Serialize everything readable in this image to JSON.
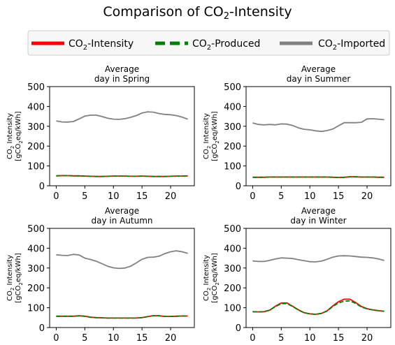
{
  "figure": {
    "title_prefix": "Comparison of CO",
    "title_sub": "2",
    "title_suffix": "-Intensity"
  },
  "legend": {
    "placement": "top-center",
    "items": [
      {
        "name": "CO2-Intensity",
        "prefix": "CO",
        "sub": "2",
        "suffix": "-Intensity",
        "color": "#ff0000",
        "style": "solid"
      },
      {
        "name": "CO2-Produced",
        "prefix": "CO",
        "sub": "2",
        "suffix": "-Produced",
        "color": "#008000",
        "style": "dashed"
      },
      {
        "name": "CO2-Imported",
        "prefix": "CO",
        "sub": "2",
        "suffix": "-Imported",
        "color": "#808080",
        "style": "solid"
      }
    ]
  },
  "axis_common": {
    "ylabel_line1_prefix": "CO",
    "ylabel_line1_sub": "2",
    "ylabel_line1_suffix": " Intensity",
    "ylabel_line2_prefix": "[gCO",
    "ylabel_line2_sub": "2",
    "ylabel_line2_suffix": "eq/kWh]",
    "yticks": [
      0,
      100,
      200,
      300,
      400,
      500
    ],
    "xticks": [
      0,
      5,
      10,
      15,
      20
    ],
    "ylim": [
      0,
      500
    ],
    "xlim": [
      -1.15,
      24.15
    ]
  },
  "chart_data": [
    {
      "type": "line",
      "title_line1": "Average",
      "title_line2": "day in Spring",
      "x": [
        0,
        1,
        2,
        3,
        4,
        5,
        6,
        7,
        8,
        9,
        10,
        11,
        12,
        13,
        14,
        15,
        16,
        17,
        18,
        19,
        20,
        21,
        22,
        23
      ],
      "ylim": [
        0,
        500
      ],
      "grid": false,
      "series": [
        {
          "name": "CO2-Intensity",
          "color": "#ff0000",
          "values": [
            50,
            51,
            51,
            50,
            50,
            49,
            48,
            47,
            47,
            48,
            49,
            49,
            49,
            48,
            48,
            49,
            48,
            47,
            47,
            47,
            48,
            49,
            49,
            50
          ]
        },
        {
          "name": "CO2-Produced",
          "color": "#008000",
          "values": [
            50,
            51,
            51,
            50,
            50,
            49,
            48,
            47,
            47,
            48,
            49,
            49,
            49,
            48,
            48,
            49,
            48,
            47,
            47,
            47,
            48,
            49,
            49,
            50
          ]
        },
        {
          "name": "CO2-Imported",
          "color": "#808080",
          "values": [
            327,
            322,
            321,
            324,
            337,
            351,
            356,
            356,
            349,
            341,
            336,
            335,
            338,
            345,
            354,
            367,
            373,
            371,
            364,
            360,
            358,
            354,
            346,
            336
          ]
        }
      ]
    },
    {
      "type": "line",
      "title_line1": "Average",
      "title_line2": "day in Summer",
      "x": [
        0,
        1,
        2,
        3,
        4,
        5,
        6,
        7,
        8,
        9,
        10,
        11,
        12,
        13,
        14,
        15,
        16,
        17,
        18,
        19,
        20,
        21,
        22,
        23
      ],
      "ylim": [
        0,
        500
      ],
      "grid": false,
      "series": [
        {
          "name": "CO2-Intensity",
          "color": "#ff0000",
          "values": [
            43,
            43,
            43,
            44,
            44,
            44,
            44,
            44,
            44,
            44,
            44,
            44,
            44,
            44,
            43,
            42,
            43,
            45,
            45,
            44,
            44,
            44,
            43,
            43
          ]
        },
        {
          "name": "CO2-Produced",
          "color": "#008000",
          "values": [
            43,
            43,
            43,
            44,
            44,
            44,
            44,
            44,
            44,
            44,
            44,
            44,
            44,
            44,
            43,
            42,
            43,
            45,
            45,
            44,
            44,
            44,
            43,
            43
          ]
        },
        {
          "name": "CO2-Imported",
          "color": "#808080",
          "values": [
            317,
            309,
            307,
            309,
            307,
            312,
            311,
            304,
            292,
            285,
            282,
            277,
            274,
            278,
            286,
            302,
            318,
            318,
            318,
            320,
            337,
            338,
            336,
            333
          ]
        }
      ]
    },
    {
      "type": "line",
      "title_line1": "Average",
      "title_line2": "day in Autumn",
      "x": [
        0,
        1,
        2,
        3,
        4,
        5,
        6,
        7,
        8,
        9,
        10,
        11,
        12,
        13,
        14,
        15,
        16,
        17,
        18,
        19,
        20,
        21,
        22,
        23
      ],
      "ylim": [
        0,
        500
      ],
      "grid": false,
      "series": [
        {
          "name": "CO2-Intensity",
          "color": "#ff0000",
          "values": [
            57,
            57,
            57,
            57,
            59,
            57,
            52,
            50,
            49,
            48,
            48,
            48,
            48,
            48,
            48,
            50,
            55,
            60,
            59,
            56,
            56,
            57,
            58,
            58
          ]
        },
        {
          "name": "CO2-Produced",
          "color": "#008000",
          "values": [
            57,
            57,
            57,
            57,
            59,
            57,
            52,
            50,
            49,
            48,
            48,
            48,
            48,
            48,
            48,
            50,
            55,
            60,
            59,
            56,
            56,
            57,
            58,
            58
          ]
        },
        {
          "name": "CO2-Imported",
          "color": "#808080",
          "values": [
            367,
            364,
            363,
            369,
            366,
            350,
            343,
            334,
            322,
            309,
            301,
            298,
            300,
            309,
            326,
            344,
            354,
            355,
            360,
            373,
            382,
            387,
            382,
            374
          ]
        }
      ]
    },
    {
      "type": "line",
      "title_line1": "Average",
      "title_line2": "day in Winter",
      "x": [
        0,
        1,
        2,
        3,
        4,
        5,
        6,
        7,
        8,
        9,
        10,
        11,
        12,
        13,
        14,
        15,
        16,
        17,
        18,
        19,
        20,
        21,
        22,
        23
      ],
      "ylim": [
        0,
        500
      ],
      "grid": false,
      "series": [
        {
          "name": "CO2-Intensity",
          "color": "#ff0000",
          "values": [
            80,
            79,
            80,
            88,
            108,
            124,
            124,
            107,
            89,
            75,
            69,
            67,
            71,
            84,
            109,
            130,
            143,
            143,
            126,
            106,
            95,
            89,
            85,
            82
          ]
        },
        {
          "name": "CO2-Produced",
          "color": "#008000",
          "values": [
            80,
            79,
            80,
            88,
            106,
            120,
            121,
            106,
            88,
            75,
            69,
            67,
            71,
            83,
            106,
            124,
            133,
            134,
            122,
            104,
            94,
            89,
            85,
            82
          ]
        },
        {
          "name": "CO2-Imported",
          "color": "#808080",
          "values": [
            336,
            333,
            333,
            339,
            346,
            351,
            350,
            348,
            342,
            337,
            332,
            331,
            335,
            344,
            355,
            361,
            362,
            361,
            358,
            355,
            354,
            351,
            346,
            338
          ]
        }
      ]
    }
  ]
}
